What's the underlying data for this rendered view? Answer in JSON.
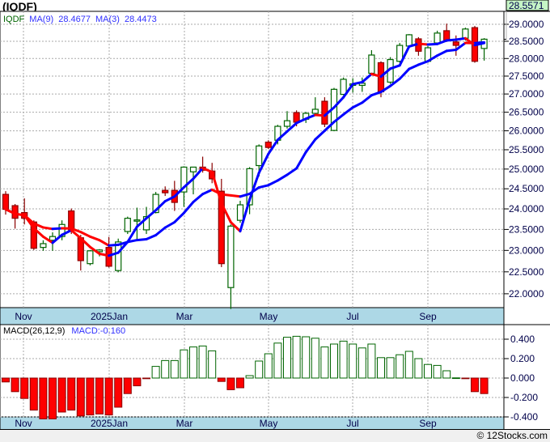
{
  "title": "(IQDF)",
  "footer": "© 12Stocks.com",
  "chart_data": [
    {
      "type": "candlestick",
      "title": "(IQDF)",
      "scale": "log",
      "legend": {
        "symbol": "IQDF",
        "ma9_label": "MA(9)",
        "ma9_value": "28.4677",
        "ma3_label": "MA(3)",
        "ma3_value": "28.4473"
      },
      "last_price": "28.5571",
      "y_ticks": [
        "29.0000",
        "28.5000",
        "28.0000",
        "27.5000",
        "27.0000",
        "26.5000",
        "26.0000",
        "25.5000",
        "25.0000",
        "24.5000",
        "24.0000",
        "23.5000",
        "23.0000",
        "22.5000",
        "22.0000"
      ],
      "y_tick_values": [
        29,
        28.5,
        28,
        27.5,
        27,
        26.5,
        26,
        25.5,
        25,
        24.5,
        24,
        23.5,
        23,
        22.5,
        22
      ],
      "ylim": [
        21.66,
        29.3
      ],
      "x_labels": [
        "Nov",
        "2025Jan",
        "Mar",
        "May",
        "Jul",
        "Sep"
      ],
      "x_label_index": [
        2,
        11,
        19,
        28,
        37,
        45
      ],
      "ohlc": [
        [
          24.36,
          24.44,
          23.86,
          23.99
        ],
        [
          24.08,
          24.12,
          23.52,
          23.77
        ],
        [
          23.91,
          24.26,
          23.62,
          23.77
        ],
        [
          23.68,
          23.72,
          23.01,
          23.05
        ],
        [
          23.07,
          23.24,
          22.99,
          23.16
        ],
        [
          23.24,
          23.43,
          22.99,
          23.33
        ],
        [
          23.33,
          23.72,
          23.24,
          23.62
        ],
        [
          23.95,
          24.01,
          23.39,
          23.49
        ],
        [
          23.3,
          23.37,
          22.53,
          22.76
        ],
        [
          22.69,
          23.01,
          22.65,
          22.99
        ],
        [
          22.97,
          23.03,
          22.86,
          23.01
        ],
        [
          23.07,
          23.32,
          22.6,
          22.63
        ],
        [
          22.53,
          23.28,
          22.49,
          23.2
        ],
        [
          23.45,
          23.81,
          23.39,
          23.77
        ],
        [
          23.7,
          24.03,
          23.24,
          23.73
        ],
        [
          23.49,
          24.05,
          23.39,
          23.81
        ],
        [
          23.91,
          24.42,
          23.89,
          24.36
        ],
        [
          24.46,
          24.56,
          24.32,
          24.4
        ],
        [
          24.46,
          24.7,
          23.95,
          24.16
        ],
        [
          24.42,
          25.07,
          24.05,
          25.05
        ],
        [
          24.93,
          25.05,
          24.36,
          25.05
        ],
        [
          25.05,
          25.32,
          24.91,
          24.97
        ],
        [
          24.95,
          25.16,
          24.64,
          24.75
        ],
        [
          24.44,
          24.75,
          22.61,
          22.69
        ],
        [
          22.14,
          23.62,
          21.66,
          23.58
        ],
        [
          23.72,
          24.2,
          23.66,
          24.1
        ],
        [
          24.1,
          25.05,
          23.87,
          25.01
        ],
        [
          25.09,
          25.64,
          24.81,
          25.6
        ],
        [
          25.7,
          25.75,
          25.52,
          25.56
        ],
        [
          25.75,
          26.16,
          25.64,
          26.12
        ],
        [
          26.12,
          26.53,
          26.06,
          26.27
        ],
        [
          26.49,
          26.55,
          26.12,
          26.23
        ],
        [
          26.31,
          26.51,
          26.21,
          26.47
        ],
        [
          26.47,
          26.91,
          26.4,
          26.58
        ],
        [
          26.8,
          26.91,
          26.1,
          26.18
        ],
        [
          26.01,
          27.17,
          25.99,
          27.13
        ],
        [
          26.99,
          27.46,
          26.97,
          27.41
        ],
        [
          27.24,
          27.44,
          27.04,
          27.28
        ],
        [
          27.24,
          27.46,
          27.06,
          27.3
        ],
        [
          27.58,
          28.24,
          27.56,
          28.1
        ],
        [
          27.88,
          27.92,
          26.91,
          27.06
        ],
        [
          27.33,
          28.04,
          27.28,
          27.97
        ],
        [
          27.92,
          28.45,
          27.88,
          28.38
        ],
        [
          28.36,
          28.71,
          28.33,
          28.69
        ],
        [
          28.57,
          28.62,
          28.08,
          28.21
        ],
        [
          27.92,
          28.36,
          27.88,
          28.31
        ],
        [
          28.45,
          28.81,
          28.43,
          28.74
        ],
        [
          28.81,
          29.02,
          28.48,
          28.52
        ],
        [
          28.48,
          28.67,
          28.08,
          28.38
        ],
        [
          28.59,
          28.9,
          28.52,
          28.86
        ],
        [
          28.9,
          28.95,
          27.88,
          27.92
        ],
        [
          28.29,
          28.59,
          27.94,
          28.56
        ]
      ],
      "ma_periods": [
        9,
        3
      ],
      "colors": {
        "up": "#006400",
        "down": "#ff0000",
        "ma_rising": "#0000ff",
        "ma_falling": "#ff0000",
        "axis_band": "#add8e6",
        "last_price_bg": "#c6f5c6"
      }
    },
    {
      "type": "bar",
      "title": "MACD(26,12,9)",
      "value_label": "MACD:-0.160",
      "y_ticks": [
        "0.400",
        "0.200",
        "0.000",
        "-0.200",
        "-0.400"
      ],
      "y_tick_values": [
        0.4,
        0.2,
        0,
        -0.2,
        -0.4
      ],
      "ylim": [
        -0.43,
        0.52
      ],
      "x_labels": [
        "Nov",
        "2025Jan",
        "Mar",
        "May",
        "Jul",
        "Sep"
      ],
      "values": [
        -0.04,
        -0.14,
        -0.21,
        -0.33,
        -0.42,
        -0.42,
        -0.35,
        -0.33,
        -0.39,
        -0.38,
        -0.37,
        -0.38,
        -0.3,
        -0.16,
        -0.08,
        -0.003,
        0.12,
        0.18,
        0.18,
        0.29,
        0.32,
        0.33,
        0.28,
        -0.035,
        -0.12,
        -0.1,
        0.025,
        0.175,
        0.25,
        0.36,
        0.42,
        0.43,
        0.425,
        0.41,
        0.32,
        0.35,
        0.38,
        0.35,
        0.31,
        0.35,
        0.21,
        0.21,
        0.24,
        0.275,
        0.2,
        0.14,
        0.13,
        0.075,
        0.002,
        -0.002,
        -0.14,
        -0.16
      ]
    }
  ]
}
